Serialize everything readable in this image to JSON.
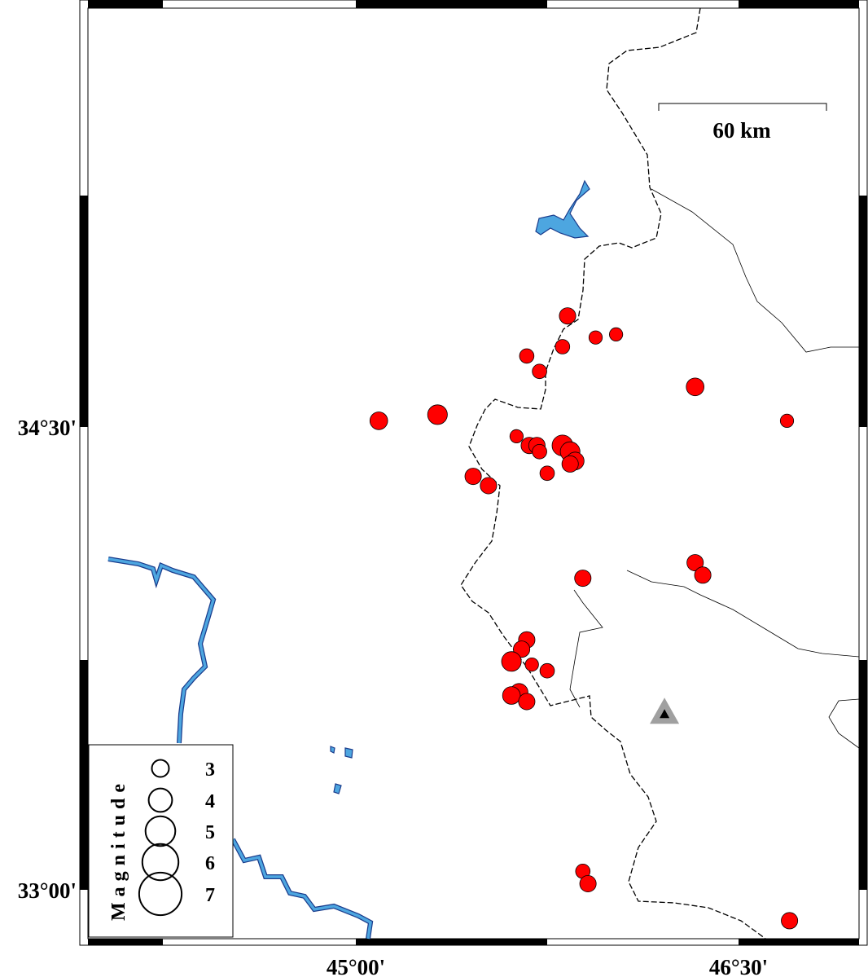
{
  "map": {
    "x_ticks": [
      {
        "lon": 45.0,
        "label": "45°00'"
      },
      {
        "lon": 46.5,
        "label": "46°30'"
      }
    ],
    "y_ticks": [
      {
        "lat": 34.5,
        "label": "34°30'"
      },
      {
        "lat": 33.0,
        "label": "33°00'"
      }
    ],
    "scale_bar": {
      "label": "60 km",
      "length_km": 60
    },
    "colors": {
      "event": "#ff0000",
      "water": "#4da6e0",
      "station": "#a0a0a0"
    },
    "station": {
      "lon": 46.21,
      "lat": 33.57,
      "icon": "triangle"
    }
  },
  "legend": {
    "title": "Magnitude",
    "items": [
      {
        "mag": 3,
        "label": "3"
      },
      {
        "mag": 4,
        "label": "4"
      },
      {
        "mag": 5,
        "label": "5"
      },
      {
        "mag": 6,
        "label": "6"
      },
      {
        "mag": 7,
        "label": "7"
      }
    ]
  },
  "events": [
    [
      45.83,
      34.86,
      2.9
    ],
    [
      45.94,
      34.79,
      2.4
    ],
    [
      46.02,
      34.8,
      2.4
    ],
    [
      45.67,
      34.73,
      2.6
    ],
    [
      45.81,
      34.76,
      2.6
    ],
    [
      45.72,
      34.68,
      2.6
    ],
    [
      46.33,
      34.63,
      3.1
    ],
    [
      46.69,
      34.52,
      2.4
    ],
    [
      45.09,
      34.52,
      3.1
    ],
    [
      45.32,
      34.54,
      3.4
    ],
    [
      45.63,
      34.47,
      2.4
    ],
    [
      45.68,
      34.44,
      2.9
    ],
    [
      45.71,
      34.44,
      2.9
    ],
    [
      45.72,
      34.42,
      2.6
    ],
    [
      45.81,
      34.44,
      3.6
    ],
    [
      45.84,
      34.42,
      3.4
    ],
    [
      45.86,
      34.39,
      3.1
    ],
    [
      45.84,
      34.38,
      2.9
    ],
    [
      45.75,
      34.35,
      2.6
    ],
    [
      45.46,
      34.34,
      2.9
    ],
    [
      45.52,
      34.31,
      2.9
    ],
    [
      46.33,
      34.06,
      2.9
    ],
    [
      46.36,
      34.02,
      2.9
    ],
    [
      45.89,
      34.01,
      2.9
    ],
    [
      45.67,
      33.81,
      2.9
    ],
    [
      45.65,
      33.78,
      2.9
    ],
    [
      45.61,
      33.74,
      3.4
    ],
    [
      45.69,
      33.73,
      2.4
    ],
    [
      45.75,
      33.71,
      2.6
    ],
    [
      45.64,
      33.64,
      3.1
    ],
    [
      45.61,
      33.63,
      3.1
    ],
    [
      45.67,
      33.61,
      2.9
    ],
    [
      45.89,
      33.06,
      2.6
    ],
    [
      45.91,
      33.02,
      2.9
    ],
    [
      46.7,
      32.9,
      2.9
    ]
  ]
}
